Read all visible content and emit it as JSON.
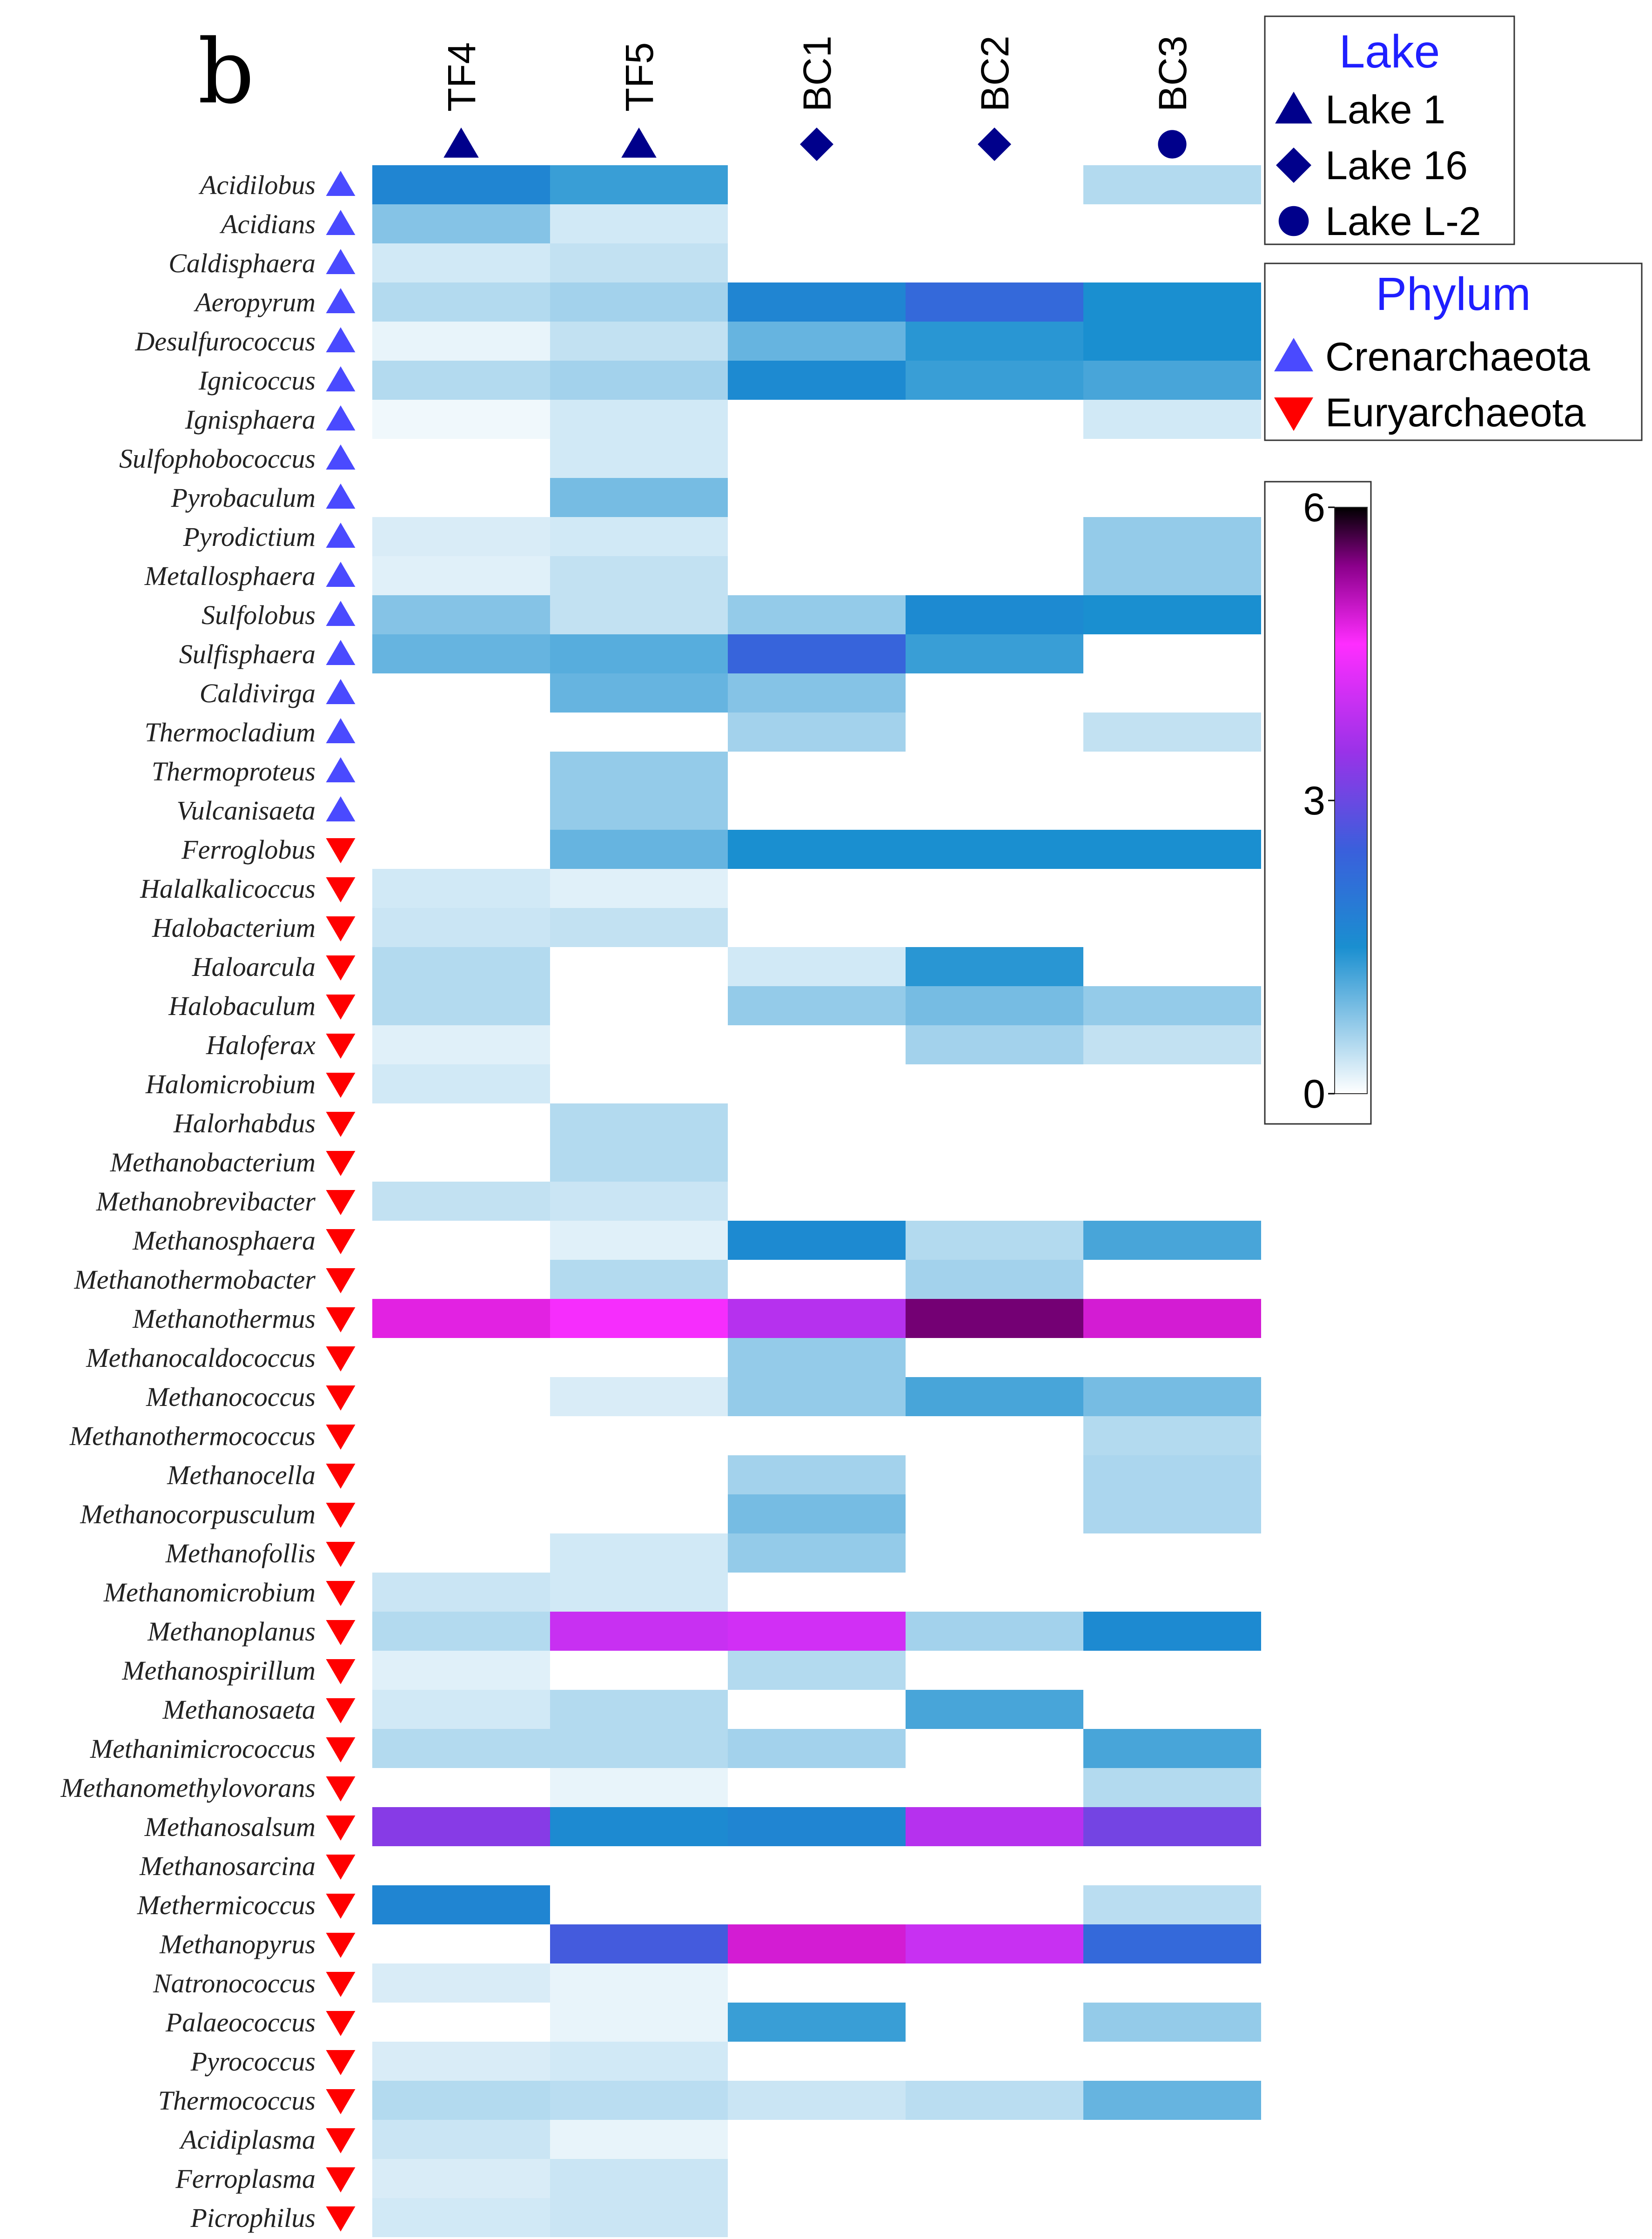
{
  "chart_data": {
    "type": "heatmap",
    "panel_label": "b",
    "columns": [
      {
        "name": "TF4",
        "lake": "Lake 1"
      },
      {
        "name": "TF5",
        "lake": "Lake 1"
      },
      {
        "name": "BC1",
        "lake": "Lake 16"
      },
      {
        "name": "BC2",
        "lake": "Lake 16"
      },
      {
        "name": "BC3",
        "lake": "Lake L-2"
      }
    ],
    "rows": [
      {
        "genus": "Acidilobus",
        "phylum": "Crenarchaeota",
        "values": [
          1.7,
          1.3,
          null,
          null,
          0.5
        ]
      },
      {
        "genus": "Acidians",
        "phylum": "Crenarchaeota",
        "values": [
          0.8,
          0.3,
          null,
          null,
          null
        ]
      },
      {
        "genus": "Caldisphaera",
        "phylum": "Crenarchaeota",
        "values": [
          0.3,
          0.4,
          null,
          null,
          null
        ]
      },
      {
        "genus": "Aeropyrum",
        "phylum": "Crenarchaeota",
        "values": [
          0.5,
          0.6,
          1.7,
          2.3,
          1.5
        ]
      },
      {
        "genus": "Desulfurococcus",
        "phylum": "Crenarchaeota",
        "values": [
          0.15,
          0.4,
          1.0,
          1.4,
          1.5
        ]
      },
      {
        "genus": "Ignicoccus",
        "phylum": "Crenarchaeota",
        "values": [
          0.5,
          0.6,
          1.6,
          1.3,
          1.2
        ]
      },
      {
        "genus": "Ignisphaera",
        "phylum": "Crenarchaeota",
        "values": [
          0.1,
          0.3,
          null,
          null,
          0.3
        ]
      },
      {
        "genus": "Sulfophobococcus",
        "phylum": "Crenarchaeota",
        "values": [
          null,
          0.3,
          null,
          null,
          null
        ]
      },
      {
        "genus": "Pyrobaculum",
        "phylum": "Crenarchaeota",
        "values": [
          null,
          0.9,
          null,
          null,
          null
        ]
      },
      {
        "genus": "Pyrodictium",
        "phylum": "Crenarchaeota",
        "values": [
          0.25,
          0.3,
          null,
          null,
          0.7
        ]
      },
      {
        "genus": "Metallosphaera",
        "phylum": "Crenarchaeota",
        "values": [
          0.2,
          0.4,
          null,
          null,
          0.7
        ]
      },
      {
        "genus": "Sulfolobus",
        "phylum": "Crenarchaeota",
        "values": [
          0.8,
          0.4,
          0.7,
          1.6,
          1.5
        ]
      },
      {
        "genus": "Sulfisphaera",
        "phylum": "Crenarchaeota",
        "values": [
          1.0,
          1.1,
          2.4,
          1.3,
          null
        ]
      },
      {
        "genus": "Caldivirga",
        "phylum": "Crenarchaeota",
        "values": [
          null,
          1.0,
          0.8,
          null,
          null
        ]
      },
      {
        "genus": "Thermocladium",
        "phylum": "Crenarchaeota",
        "values": [
          null,
          null,
          0.6,
          null,
          0.4
        ]
      },
      {
        "genus": "Thermoproteus",
        "phylum": "Crenarchaeota",
        "values": [
          null,
          0.7,
          null,
          null,
          null
        ]
      },
      {
        "genus": "Vulcanisaeta",
        "phylum": "Crenarchaeota",
        "values": [
          null,
          0.7,
          null,
          null,
          null
        ]
      },
      {
        "genus": "Ferroglobus",
        "phylum": "Euryarchaeota",
        "values": [
          null,
          1.0,
          1.5,
          1.5,
          1.5
        ]
      },
      {
        "genus": "Halalkalicoccus",
        "phylum": "Euryarchaeota",
        "values": [
          0.3,
          0.2,
          null,
          null,
          null
        ]
      },
      {
        "genus": "Halobacterium",
        "phylum": "Euryarchaeota",
        "values": [
          0.35,
          0.4,
          null,
          null,
          null
        ]
      },
      {
        "genus": "Haloarcula",
        "phylum": "Euryarchaeota",
        "values": [
          0.5,
          null,
          0.3,
          1.4,
          null
        ]
      },
      {
        "genus": "Halobaculum",
        "phylum": "Euryarchaeota",
        "values": [
          0.5,
          null,
          0.7,
          0.9,
          0.7
        ]
      },
      {
        "genus": "Haloferax",
        "phylum": "Euryarchaeota",
        "values": [
          0.2,
          null,
          null,
          0.6,
          0.4
        ]
      },
      {
        "genus": "Halomicrobium",
        "phylum": "Euryarchaeota",
        "values": [
          0.3,
          null,
          null,
          null,
          null
        ]
      },
      {
        "genus": "Halorhabdus",
        "phylum": "Euryarchaeota",
        "values": [
          null,
          0.5,
          null,
          null,
          null
        ]
      },
      {
        "genus": "Methanobacterium",
        "phylum": "Euryarchaeota",
        "values": [
          null,
          0.5,
          null,
          null,
          null
        ]
      },
      {
        "genus": "Methanobrevibacter",
        "phylum": "Euryarchaeota",
        "values": [
          0.4,
          0.35,
          null,
          null,
          null
        ]
      },
      {
        "genus": "Methanosphaera",
        "phylum": "Euryarchaeota",
        "values": [
          null,
          0.2,
          1.6,
          0.5,
          1.2
        ]
      },
      {
        "genus": "Methanothermobacter",
        "phylum": "Euryarchaeota",
        "values": [
          null,
          0.5,
          null,
          0.6,
          null
        ]
      },
      {
        "genus": "Methanothermus",
        "phylum": "Euryarchaeota",
        "values": [
          4.8,
          4.5,
          3.8,
          5.5,
          4.9
        ]
      },
      {
        "genus": "Methanocaldococcus",
        "phylum": "Euryarchaeota",
        "values": [
          null,
          null,
          0.7,
          null,
          null
        ]
      },
      {
        "genus": "Methanococcus",
        "phylum": "Euryarchaeota",
        "values": [
          null,
          0.25,
          0.7,
          1.2,
          0.9
        ]
      },
      {
        "genus": "Methanothermococcus",
        "phylum": "Euryarchaeota",
        "values": [
          null,
          null,
          null,
          null,
          0.5
        ]
      },
      {
        "genus": "Methanocella",
        "phylum": "Euryarchaeota",
        "values": [
          null,
          null,
          0.6,
          null,
          0.55
        ]
      },
      {
        "genus": "Methanocorpusculum",
        "phylum": "Euryarchaeota",
        "values": [
          null,
          null,
          0.9,
          null,
          0.55
        ]
      },
      {
        "genus": "Methanofollis",
        "phylum": "Euryarchaeota",
        "values": [
          null,
          0.3,
          0.7,
          null,
          null
        ]
      },
      {
        "genus": "Methanomicrobium",
        "phylum": "Euryarchaeota",
        "values": [
          0.35,
          0.3,
          null,
          null,
          null
        ]
      },
      {
        "genus": "Methanoplanus",
        "phylum": "Euryarchaeota",
        "values": [
          0.5,
          4.0,
          4.1,
          0.6,
          1.6
        ]
      },
      {
        "genus": "Methanospirillum",
        "phylum": "Euryarchaeota",
        "values": [
          0.2,
          null,
          0.5,
          null,
          null
        ]
      },
      {
        "genus": "Methanosaeta",
        "phylum": "Euryarchaeota",
        "values": [
          0.3,
          0.5,
          null,
          1.2,
          null
        ]
      },
      {
        "genus": "Methanimicrococcus",
        "phylum": "Euryarchaeota",
        "values": [
          0.5,
          0.5,
          0.6,
          null,
          1.2
        ]
      },
      {
        "genus": "Methanomethylovorans",
        "phylum": "Euryarchaeota",
        "values": [
          null,
          0.15,
          null,
          null,
          0.5
        ]
      },
      {
        "genus": "Methanosalsum",
        "phylum": "Euryarchaeota",
        "values": [
          3.3,
          1.6,
          1.7,
          3.8,
          3.1
        ]
      },
      {
        "genus": "Methanosarcina",
        "phylum": "Euryarchaeota",
        "values": [
          null,
          null,
          null,
          null,
          null
        ]
      },
      {
        "genus": "Methermicoccus",
        "phylum": "Euryarchaeota",
        "values": [
          1.7,
          null,
          null,
          null,
          0.45
        ]
      },
      {
        "genus": "Methanopyrus",
        "phylum": "Euryarchaeota",
        "values": [
          null,
          2.6,
          4.9,
          4.0,
          2.3
        ]
      },
      {
        "genus": "Natronococcus",
        "phylum": "Euryarchaeota",
        "values": [
          0.25,
          0.15,
          null,
          null,
          null
        ]
      },
      {
        "genus": "Palaeococcus",
        "phylum": "Euryarchaeota",
        "values": [
          null,
          0.15,
          1.3,
          null,
          0.7
        ]
      },
      {
        "genus": "Pyrococcus",
        "phylum": "Euryarchaeota",
        "values": [
          0.25,
          0.3,
          null,
          null,
          null
        ]
      },
      {
        "genus": "Thermococcus",
        "phylum": "Euryarchaeota",
        "values": [
          0.5,
          0.45,
          0.35,
          0.45,
          1.0
        ]
      },
      {
        "genus": "Acidiplasma",
        "phylum": "Euryarchaeota",
        "values": [
          0.35,
          0.15,
          null,
          null,
          null
        ]
      },
      {
        "genus": "Ferroplasma",
        "phylum": "Euryarchaeota",
        "values": [
          0.25,
          0.35,
          null,
          null,
          null
        ]
      },
      {
        "genus": "Picrophilus",
        "phylum": "Euryarchaeota",
        "values": [
          0.3,
          0.35,
          null,
          null,
          null
        ]
      }
    ],
    "legends": {
      "lake": {
        "title": "Lake",
        "items": [
          {
            "label": "Lake 1",
            "symbol": "triangle-up",
            "color": "#00008b"
          },
          {
            "label": "Lake 16",
            "symbol": "diamond",
            "color": "#00008b"
          },
          {
            "label": "Lake L-2",
            "symbol": "circle",
            "color": "#00008b"
          }
        ]
      },
      "phylum": {
        "title": "Phylum",
        "items": [
          {
            "label": "Crenarchaeota",
            "symbol": "triangle-up",
            "color": "#4a4aff"
          },
          {
            "label": "Euryarchaeota",
            "symbol": "triangle-down",
            "color": "#ff0000"
          }
        ]
      }
    },
    "colorbar": {
      "min": 0,
      "max": 6,
      "ticks": [
        "0",
        "3",
        "6"
      ],
      "stops": [
        {
          "value": 0,
          "color": "#ffffff"
        },
        {
          "value": 1.5,
          "color": "#1a8fd0"
        },
        {
          "value": 2.5,
          "color": "#3a5fdc"
        },
        {
          "value": 3.5,
          "color": "#9a32e8"
        },
        {
          "value": 4.6,
          "color": "#ff2dff"
        },
        {
          "value": 5.4,
          "color": "#8b008b"
        },
        {
          "value": 6,
          "color": "#000000"
        }
      ]
    }
  }
}
